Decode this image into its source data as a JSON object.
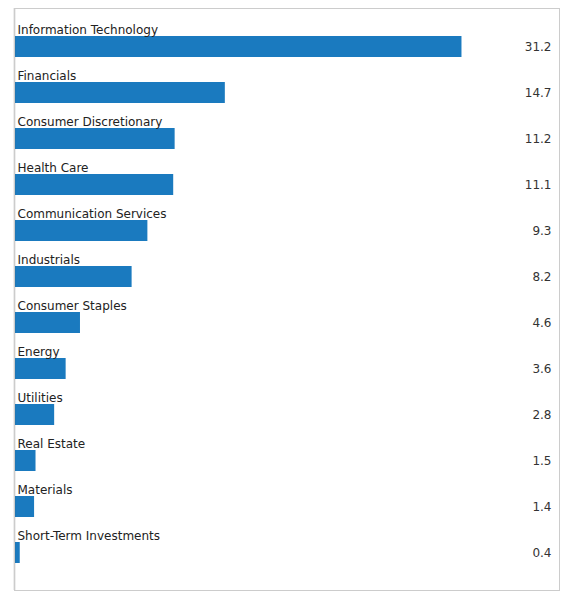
{
  "chart_data": {
    "type": "bar",
    "orientation": "horizontal",
    "categories": [
      "Information Technology",
      "Financials",
      "Consumer Discretionary",
      "Health Care",
      "Communication Services",
      "Industrials",
      "Consumer Staples",
      "Energy",
      "Utilities",
      "Real Estate",
      "Materials",
      "Short-Term Investments"
    ],
    "values": [
      31.2,
      14.7,
      11.2,
      11.1,
      9.3,
      8.2,
      4.6,
      3.6,
      2.8,
      1.5,
      1.4,
      0.4
    ],
    "color": "#1a7abf",
    "xlim": [
      0,
      38
    ],
    "data_labels": true,
    "tick_labels": false,
    "grid": false
  }
}
